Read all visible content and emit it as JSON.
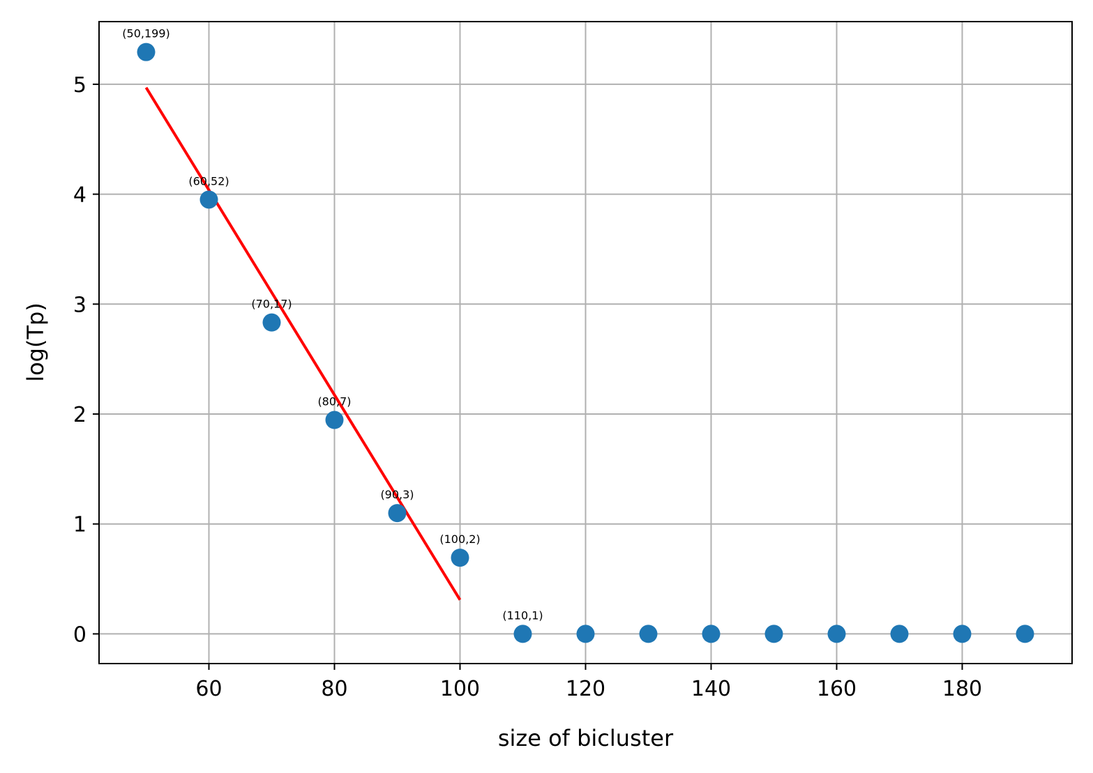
{
  "chart_data": {
    "type": "scatter",
    "xlabel": "size of bicluster",
    "ylabel": "log(Tp)",
    "xlim": [
      42.5,
      197.5
    ],
    "ylim": [
      -0.27,
      5.57
    ],
    "x_ticks": [
      60,
      80,
      100,
      120,
      140,
      160,
      180
    ],
    "y_ticks": [
      0,
      1,
      2,
      3,
      4,
      5
    ],
    "grid": true,
    "legend": "none",
    "colors": {
      "points": "#1f77b4",
      "fit_line": "#ff0000",
      "grid": "#b0b0b0"
    },
    "points": [
      {
        "x": 50,
        "y": 5.293,
        "label": "(50,199)"
      },
      {
        "x": 60,
        "y": 3.951,
        "label": "(60,52)"
      },
      {
        "x": 70,
        "y": 2.833,
        "label": "(70,17)"
      },
      {
        "x": 80,
        "y": 1.946,
        "label": "(80,7)"
      },
      {
        "x": 90,
        "y": 1.099,
        "label": "(90,3)"
      },
      {
        "x": 100,
        "y": 0.693,
        "label": "(100,2)"
      },
      {
        "x": 110,
        "y": 0,
        "label": "(110,1)"
      },
      {
        "x": 120,
        "y": 0,
        "label": ""
      },
      {
        "x": 130,
        "y": 0,
        "label": ""
      },
      {
        "x": 140,
        "y": 0,
        "label": ""
      },
      {
        "x": 150,
        "y": 0,
        "label": ""
      },
      {
        "x": 160,
        "y": 0,
        "label": ""
      },
      {
        "x": 170,
        "y": 0,
        "label": ""
      },
      {
        "x": 180,
        "y": 0,
        "label": ""
      },
      {
        "x": 190,
        "y": 0,
        "label": ""
      }
    ],
    "fit_line": {
      "x": [
        50,
        100
      ],
      "y": [
        4.97,
        0.31
      ]
    }
  }
}
